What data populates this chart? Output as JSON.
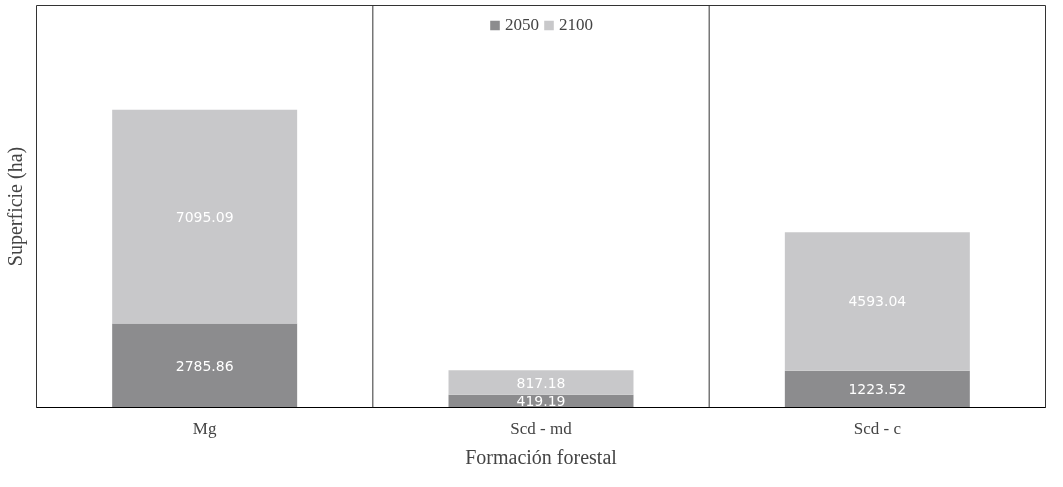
{
  "chart_data": {
    "type": "bar",
    "stacked": true,
    "xlabel": "Formación forestal",
    "ylabel": "Superficie (ha)",
    "categories": [
      "Mg",
      "Scd - md",
      "Scd - c"
    ],
    "series": [
      {
        "name": "2050",
        "color": "#8c8c8e",
        "values": [
          2785.86,
          419.19,
          1223.52
        ]
      },
      {
        "name": "2100",
        "color": "#c8c8ca",
        "values": [
          7095.09,
          817.18,
          4593.04
        ]
      }
    ],
    "data_labels": true,
    "legend": "top",
    "grid": "x",
    "tick_labels": "x"
  }
}
